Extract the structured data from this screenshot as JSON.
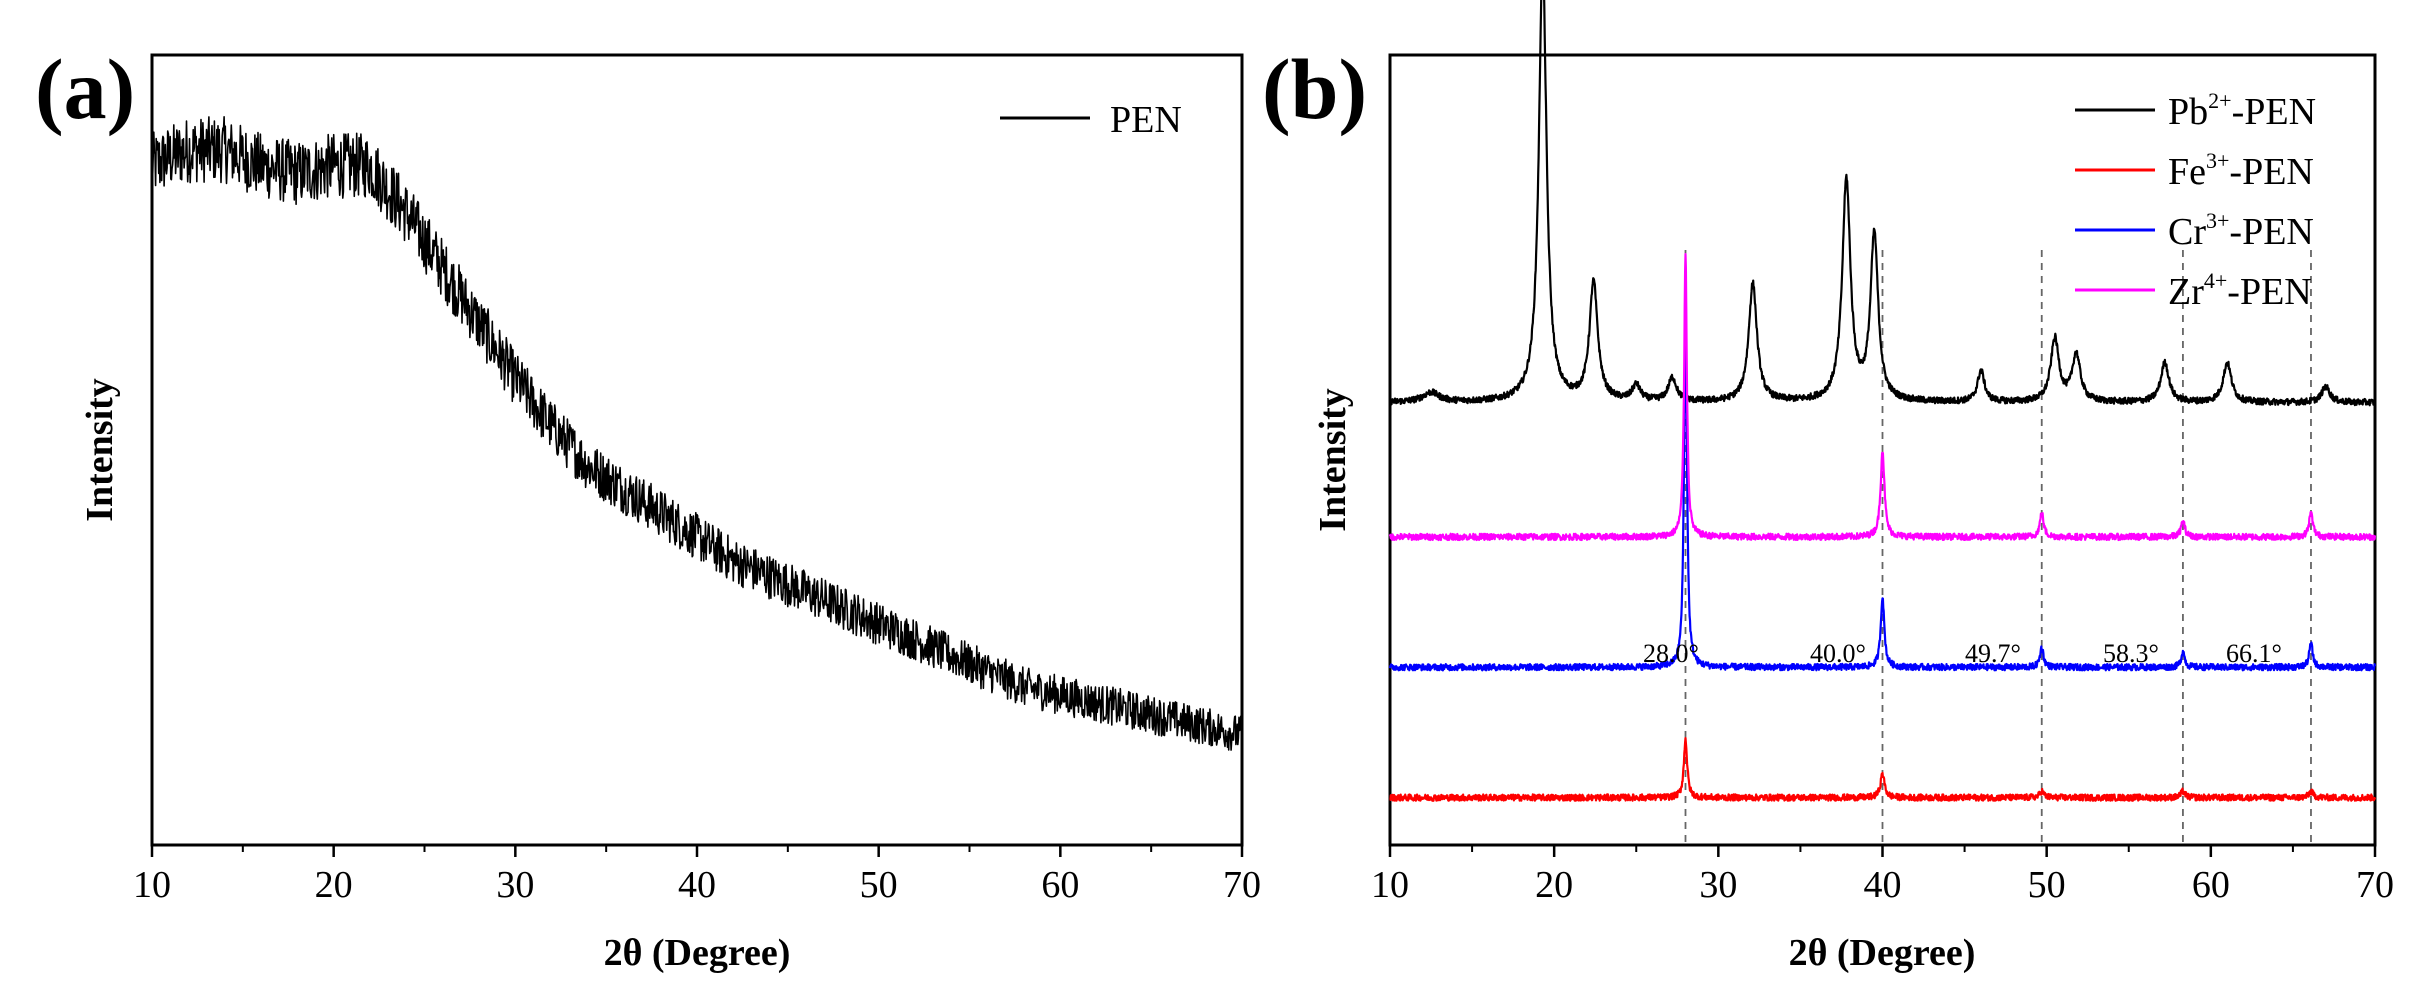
{
  "chart_data": [
    {
      "panel": "(a)",
      "type": "line",
      "title": "",
      "xlabel": "2θ (Degree)",
      "ylabel": "Intensity",
      "xlim": [
        10,
        70
      ],
      "xticks": [
        "10",
        "20",
        "30",
        "40",
        "50",
        "60",
        "70"
      ],
      "legend": {
        "position": "top-right"
      },
      "series": [
        {
          "name": "PEN",
          "color": "#000000",
          "noise": 0.045,
          "x": [
            10,
            12,
            14,
            16,
            18,
            20,
            22,
            24,
            26,
            28,
            30,
            32,
            34,
            36,
            38,
            40,
            42,
            44,
            46,
            48,
            50,
            52,
            54,
            56,
            58,
            60,
            62,
            64,
            66,
            68,
            70
          ],
          "y": [
            0.86,
            0.88,
            0.88,
            0.86,
            0.85,
            0.86,
            0.86,
            0.8,
            0.73,
            0.66,
            0.59,
            0.53,
            0.48,
            0.45,
            0.42,
            0.39,
            0.36,
            0.34,
            0.32,
            0.3,
            0.28,
            0.26,
            0.24,
            0.22,
            0.2,
            0.19,
            0.18,
            0.17,
            0.16,
            0.15,
            0.14
          ]
        }
      ]
    },
    {
      "panel": "(b)",
      "type": "line",
      "title": "",
      "xlabel": "2θ (Degree)",
      "ylabel": "Intensity",
      "xlim": [
        10,
        70
      ],
      "xticks": [
        "10",
        "20",
        "30",
        "40",
        "50",
        "60",
        "70"
      ],
      "legend": {
        "position": "top-right"
      },
      "reference_lines_deg": [
        28.0,
        40.0,
        49.7,
        58.3,
        66.1
      ],
      "annotations": [
        "28.0°",
        "40.0°",
        "49.7°",
        "58.3°",
        "66.1°"
      ],
      "series": [
        {
          "name": "Pb2+-PEN",
          "label_base": "Pb",
          "label_sup": "2+",
          "label_suffix": "-PEN",
          "color": "#000000",
          "baseline": 0.56,
          "noise": 0.004,
          "peaks": [
            {
              "x": 12.5,
              "h": 0.012,
              "w": 0.6
            },
            {
              "x": 19.3,
              "h": 0.56,
              "w": 0.28
            },
            {
              "x": 22.4,
              "h": 0.15,
              "w": 0.3
            },
            {
              "x": 25.0,
              "h": 0.02,
              "w": 0.3
            },
            {
              "x": 27.2,
              "h": 0.03,
              "w": 0.3
            },
            {
              "x": 32.1,
              "h": 0.15,
              "w": 0.3
            },
            {
              "x": 37.8,
              "h": 0.28,
              "w": 0.3
            },
            {
              "x": 39.5,
              "h": 0.21,
              "w": 0.28
            },
            {
              "x": 46.0,
              "h": 0.04,
              "w": 0.25
            },
            {
              "x": 50.5,
              "h": 0.08,
              "w": 0.3
            },
            {
              "x": 51.8,
              "h": 0.06,
              "w": 0.3
            },
            {
              "x": 57.2,
              "h": 0.05,
              "w": 0.3
            },
            {
              "x": 61.0,
              "h": 0.05,
              "w": 0.3
            },
            {
              "x": 67.0,
              "h": 0.02,
              "w": 0.3
            }
          ]
        },
        {
          "name": "Fe3+-PEN",
          "label_base": "Fe",
          "label_sup": "3+",
          "label_suffix": "-PEN",
          "color": "#ff0000",
          "baseline": 0.06,
          "noise": 0.004,
          "peaks": [
            {
              "x": 28.0,
              "h": 0.075,
              "w": 0.12
            },
            {
              "x": 40.0,
              "h": 0.03,
              "w": 0.15
            },
            {
              "x": 49.7,
              "h": 0.008,
              "w": 0.15
            },
            {
              "x": 58.3,
              "h": 0.008,
              "w": 0.15
            },
            {
              "x": 66.1,
              "h": 0.008,
              "w": 0.15
            }
          ]
        },
        {
          "name": "Cr3+-PEN",
          "label_base": "Cr",
          "label_sup": "3+",
          "label_suffix": "-PEN",
          "color": "#0000ff",
          "baseline": 0.225,
          "noise": 0.004,
          "peaks": [
            {
              "x": 28.0,
              "h": 0.49,
              "w": 0.1
            },
            {
              "x": 40.0,
              "h": 0.09,
              "w": 0.13
            },
            {
              "x": 49.7,
              "h": 0.025,
              "w": 0.13
            },
            {
              "x": 58.3,
              "h": 0.02,
              "w": 0.13
            },
            {
              "x": 66.1,
              "h": 0.03,
              "w": 0.13
            }
          ]
        },
        {
          "name": "Zr4+-PEN",
          "label_base": "Zr",
          "label_sup": "4+",
          "label_suffix": "-PEN",
          "color": "#ff00ff",
          "baseline": 0.39,
          "noise": 0.004,
          "peaks": [
            {
              "x": 28.0,
              "h": 0.36,
              "w": 0.1
            },
            {
              "x": 40.0,
              "h": 0.11,
              "w": 0.14
            },
            {
              "x": 49.7,
              "h": 0.03,
              "w": 0.14
            },
            {
              "x": 58.3,
              "h": 0.02,
              "w": 0.14
            },
            {
              "x": 66.1,
              "h": 0.03,
              "w": 0.14
            }
          ]
        }
      ]
    }
  ]
}
